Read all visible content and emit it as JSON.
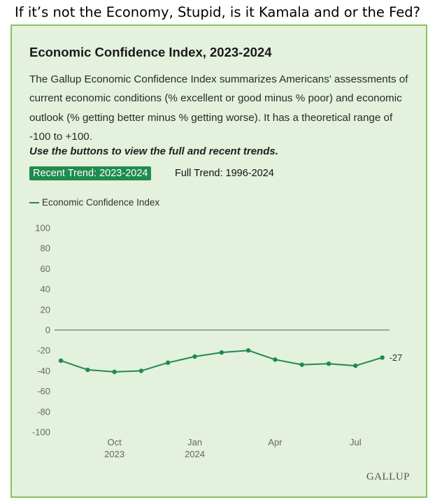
{
  "headline": "If it’s not the Economy, Stupid, is it Kamala and or the Fed?",
  "card": {
    "description": "The Gallup Economic Confidence Index summarizes Americans' assessments of current economic conditions (% excellent or good minus % poor) and economic outlook (% getting better minus % getting worse). It has a theoretical range of -100 to +100.",
    "instruction": "Use the buttons to view the full and recent trends.",
    "buttons": {
      "recent": "Recent Trend: 2023-2024",
      "full": "Full Trend: 1996-2024"
    },
    "brand": "GALLUP"
  },
  "colors": {
    "series": "#1f8b4c",
    "card_background": "#e4f1dc",
    "card_border": "#86c25f"
  },
  "chart_data": {
    "type": "line",
    "title": "Economic Confidence Index, 2023-2024",
    "x": [
      "2023-08",
      "2023-09",
      "2023-10",
      "2023-11",
      "2023-12",
      "2024-01",
      "2024-02",
      "2024-03",
      "2024-04",
      "2024-05",
      "2024-06",
      "2024-07",
      "2024-08"
    ],
    "series": [
      {
        "name": "Economic Confidence Index",
        "values": [
          -30,
          -39,
          -41,
          -40,
          -32,
          -26,
          -22,
          -20,
          -29,
          -34,
          -33,
          -35,
          -27
        ]
      }
    ],
    "end_label": "-27",
    "ylim": [
      -100,
      100
    ],
    "yticks": [
      100,
      80,
      60,
      40,
      20,
      0,
      -20,
      -40,
      -60,
      -80,
      -100
    ],
    "xticks": [
      {
        "x": "2023-10",
        "label": "Oct",
        "sublabel": "2023"
      },
      {
        "x": "2024-01",
        "label": "Jan",
        "sublabel": "2024"
      },
      {
        "x": "2024-04",
        "label": "Apr",
        "sublabel": ""
      },
      {
        "x": "2024-07",
        "label": "Jul",
        "sublabel": ""
      }
    ],
    "zero_line": true,
    "legend": "top-left"
  }
}
